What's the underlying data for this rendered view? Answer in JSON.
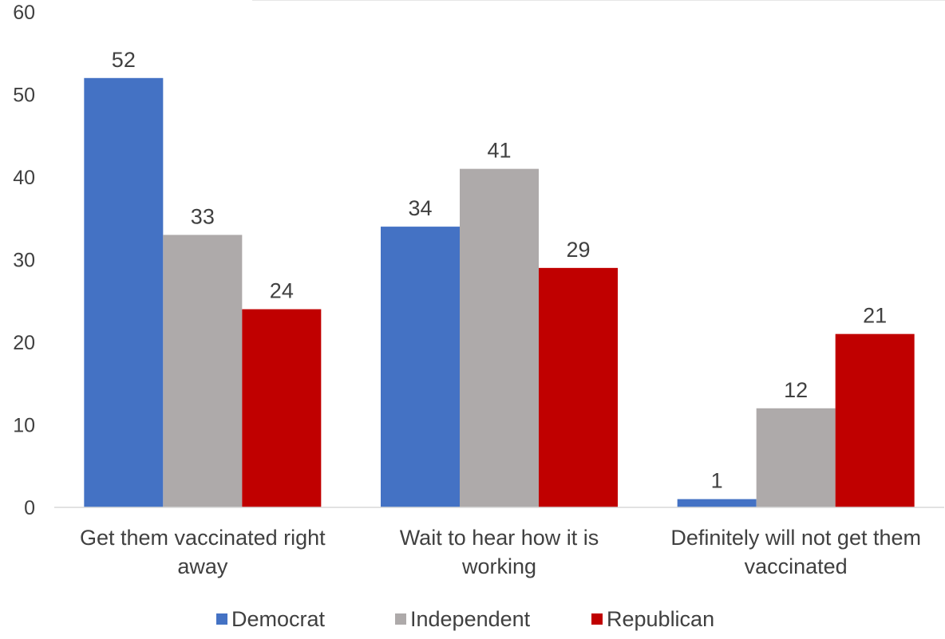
{
  "chart_data": {
    "type": "bar",
    "title": "",
    "xlabel": "",
    "ylabel": "",
    "ylim": [
      0,
      60
    ],
    "yticks": [
      0,
      10,
      20,
      30,
      40,
      50,
      60
    ],
    "grid": false,
    "legend_position": "bottom",
    "categories": [
      [
        "Get them vaccinated right",
        "away"
      ],
      [
        "Wait to hear how it is",
        "working"
      ],
      [
        "Definitely will not get them",
        "vaccinated"
      ]
    ],
    "series": [
      {
        "name": "Democrat",
        "color": "#4472C4",
        "values": [
          52,
          34,
          1
        ]
      },
      {
        "name": "Independent",
        "color": "#AEAAAA",
        "values": [
          33,
          41,
          12
        ]
      },
      {
        "name": "Republican",
        "color": "#C00000",
        "values": [
          24,
          29,
          21
        ]
      }
    ]
  }
}
